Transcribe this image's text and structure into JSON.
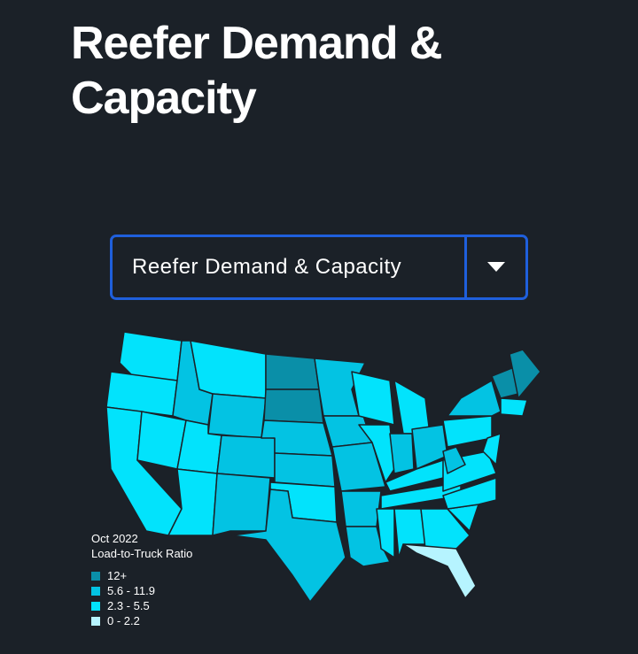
{
  "header": {
    "title": "Reefer Demand & Capacity"
  },
  "dropdown": {
    "selected": "Reefer Demand & Capacity"
  },
  "map": {
    "legend": {
      "title": "Oct 2022",
      "subtitle": "Load-to-Truck Ratio",
      "items": [
        {
          "label": "12+",
          "color": "#0a8fa8"
        },
        {
          "label": "5.6 - 11.9",
          "color": "#03c3e3"
        },
        {
          "label": "2.3 - 5.5",
          "color": "#02e3fc"
        },
        {
          "label": "0 - 2.2",
          "color": "#b6f4ff"
        }
      ]
    }
  }
}
